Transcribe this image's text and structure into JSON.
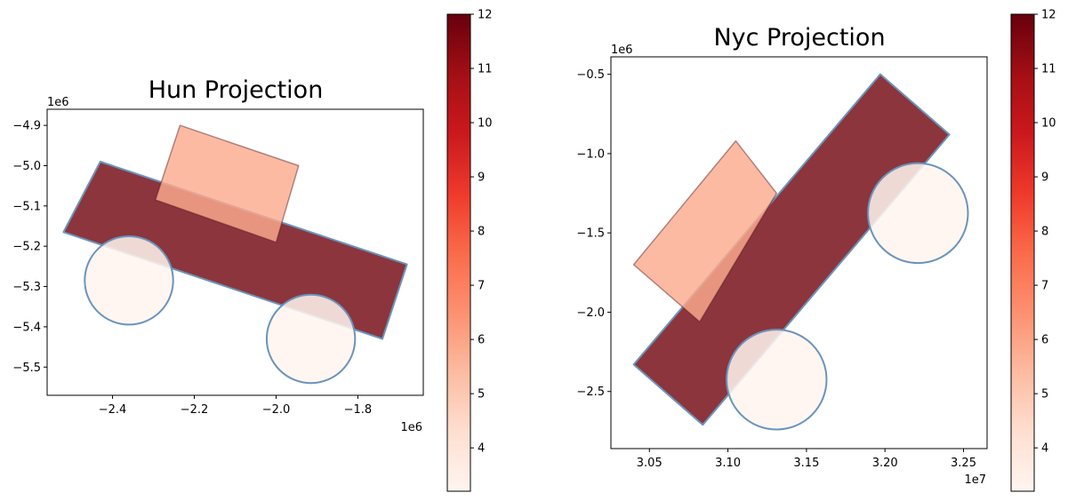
{
  "chart_data": [
    {
      "type": "map",
      "title": "Hun Projection",
      "x_offset_label": "1e6",
      "y_offset_label": "1e6",
      "xlim": [
        -2.56,
        -1.64
      ],
      "ylim": [
        -5.57,
        -4.86
      ],
      "xticks": [
        -2.4,
        -2.2,
        -2.0,
        -1.8
      ],
      "xtick_labels": [
        "−2.4",
        "−2.2",
        "−2.0",
        "−1.8"
      ],
      "yticks": [
        -4.9,
        -5.0,
        -5.1,
        -5.2,
        -5.3,
        -5.4,
        -5.5
      ],
      "ytick_labels": [
        "−4.9",
        "−5.0",
        "−5.1",
        "−5.2",
        "−5.3",
        "−5.4",
        "−5.5"
      ],
      "shapes": [
        {
          "kind": "polygon",
          "value": 12,
          "points": [
            [
              -2.43,
              -4.99
            ],
            [
              -1.68,
              -5.245
            ],
            [
              -1.74,
              -5.43
            ],
            [
              -2.52,
              -5.165
            ]
          ]
        },
        {
          "kind": "polygon",
          "value": 5.5,
          "points": [
            [
              -2.235,
              -4.9
            ],
            [
              -1.945,
              -5.0
            ],
            [
              -2.0,
              -5.19
            ],
            [
              -2.295,
              -5.085
            ]
          ]
        },
        {
          "kind": "circle",
          "value": 3.2,
          "center": [
            -2.36,
            -5.285
          ],
          "r": 0.108
        },
        {
          "kind": "circle",
          "value": 3.2,
          "center": [
            -1.915,
            -5.43
          ],
          "r": 0.108
        }
      ]
    },
    {
      "type": "map",
      "title": "Nyc Projection",
      "x_offset_label": "1e7",
      "y_offset_label": "1e6",
      "xlim": [
        30.255,
        32.65
      ],
      "ylim": [
        -2.86,
        -0.39
      ],
      "xticks": [
        30.5,
        31.0,
        31.5,
        32.0,
        32.5
      ],
      "xtick_labels": [
        "3.05",
        "3.10",
        "3.15",
        "3.20",
        "3.25"
      ],
      "yticks": [
        -0.5,
        -1.0,
        -1.5,
        -2.0,
        -2.5
      ],
      "ytick_labels": [
        "−0.5",
        "−1.0",
        "−1.5",
        "−2.0",
        "−2.5"
      ],
      "shapes": [
        {
          "kind": "polygon",
          "value": 12,
          "points": [
            [
              31.97,
              -0.5
            ],
            [
              32.41,
              -0.88
            ],
            [
              30.84,
              -2.71
            ],
            [
              30.4,
              -2.33
            ]
          ]
        },
        {
          "kind": "polygon",
          "value": 5.5,
          "points": [
            [
              31.05,
              -0.92
            ],
            [
              31.31,
              -1.25
            ],
            [
              30.82,
              -2.06
            ],
            [
              30.4,
              -1.7
            ]
          ]
        },
        {
          "kind": "circle",
          "value": 3.2,
          "center": [
            32.21,
            -1.375
          ],
          "r": 0.318
        },
        {
          "kind": "circle",
          "value": 3.2,
          "center": [
            31.31,
            -2.425
          ],
          "r": 0.318
        }
      ]
    }
  ],
  "colorbar": {
    "cmap": "Reds",
    "range": [
      3.2,
      12
    ],
    "ticks": [
      4,
      5,
      6,
      7,
      8,
      9,
      10,
      11,
      12
    ],
    "tick_labels": [
      "4",
      "5",
      "6",
      "7",
      "8",
      "9",
      "10",
      "11",
      "12"
    ]
  },
  "colors": {
    "edge": "#6a94bc",
    "high": "#730812",
    "mid": "#fcab8e",
    "low": "#fff4ef"
  }
}
